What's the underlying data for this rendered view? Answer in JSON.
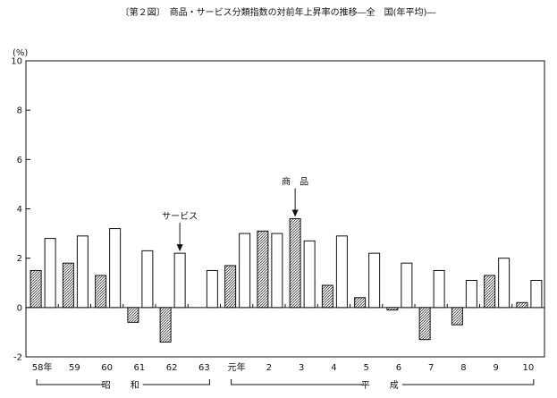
{
  "chart_data": {
    "type": "bar",
    "title": "〔第２図〕　商品・サービス分類指数の対前年上昇率の推移―全　国(年平均)―",
    "y_unit": "(%)",
    "ylim": [
      -2,
      10
    ],
    "yticks": [
      -2,
      0,
      2,
      4,
      6,
      8,
      10
    ],
    "grid": false,
    "categories": [
      "58年",
      "59",
      "60",
      "61",
      "62",
      "63",
      "元年",
      "2",
      "3",
      "4",
      "5",
      "6",
      "7",
      "8",
      "9",
      "10"
    ],
    "series": [
      {
        "name": "商品",
        "fill": "hatched",
        "values": [
          1.5,
          1.8,
          1.3,
          -0.6,
          -1.4,
          null,
          1.7,
          3.1,
          3.6,
          0.9,
          0.4,
          -0.1,
          -1.3,
          -0.7,
          1.3,
          0.2
        ]
      },
      {
        "name": "サービス",
        "fill": "white",
        "values": [
          2.8,
          2.9,
          3.2,
          2.3,
          2.2,
          1.5,
          3.0,
          3.0,
          2.7,
          2.9,
          2.2,
          1.8,
          1.5,
          1.1,
          2.0,
          1.1
        ]
      }
    ],
    "era_labels": [
      {
        "text": "昭　和",
        "from": 0,
        "to": 5
      },
      {
        "text": "平　成",
        "from": 6,
        "to": 15
      }
    ],
    "annotations": [
      {
        "text": "サービス",
        "series": 1,
        "index": 4
      },
      {
        "text": "商　品",
        "series": 0,
        "index": 8
      }
    ]
  }
}
